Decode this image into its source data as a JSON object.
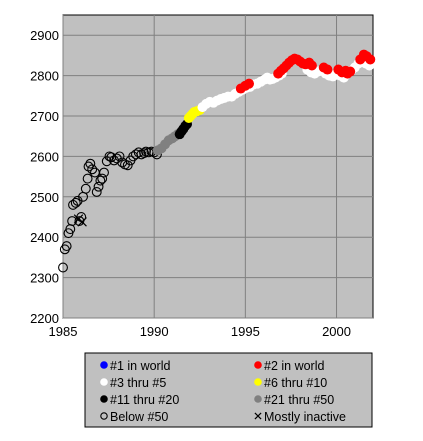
{
  "chart_data": {
    "type": "scatter",
    "xlim": [
      1985,
      2002
    ],
    "ylim": [
      2200,
      2950
    ],
    "x_ticks": [
      1985,
      1990,
      1995,
      2000
    ],
    "y_ticks": [
      2200,
      2300,
      2400,
      2500,
      2600,
      2700,
      2800,
      2900
    ],
    "grid": true,
    "plot_background": "#c0c0c0",
    "legend_position": "bottom",
    "categories": [
      {
        "key": "rank1",
        "label": "#1 in world",
        "color": "#0000ff",
        "marker": "filled"
      },
      {
        "key": "rank2",
        "label": "#2 in world",
        "color": "#ff0000",
        "marker": "filled"
      },
      {
        "key": "rank3to5",
        "label": "#3 thru #5",
        "color": "#ffffff",
        "marker": "filled"
      },
      {
        "key": "rank6to10",
        "label": "#6 thru #10",
        "color": "#ffff00",
        "marker": "filled"
      },
      {
        "key": "rank11to20",
        "label": "#11 thru #20",
        "color": "#000000",
        "marker": "filled"
      },
      {
        "key": "rank21to50",
        "label": "#21 thru #50",
        "color": "#808080",
        "marker": "filled"
      },
      {
        "key": "below50",
        "label": "Below #50",
        "color": "#000000",
        "marker": "open"
      },
      {
        "key": "inactive",
        "label": "Mostly inactive",
        "color": "#000000",
        "marker": "cross"
      }
    ],
    "series": [
      {
        "category": "below50",
        "points": [
          [
            1985.0,
            2325
          ],
          [
            1985.1,
            2370
          ],
          [
            1985.2,
            2378
          ],
          [
            1985.3,
            2410
          ],
          [
            1985.4,
            2420
          ],
          [
            1985.5,
            2440
          ],
          [
            1985.55,
            2480
          ],
          [
            1985.7,
            2485
          ],
          [
            1985.8,
            2490
          ],
          [
            1985.9,
            2440
          ],
          [
            1986.0,
            2450
          ],
          [
            1986.1,
            2500
          ],
          [
            1986.25,
            2520
          ],
          [
            1986.35,
            2545
          ],
          [
            1986.4,
            2575
          ],
          [
            1986.5,
            2582
          ],
          [
            1986.6,
            2568
          ],
          [
            1986.75,
            2560
          ],
          [
            1986.85,
            2512
          ],
          [
            1986.95,
            2525
          ],
          [
            1987.05,
            2540
          ],
          [
            1987.15,
            2545
          ],
          [
            1987.25,
            2560
          ],
          [
            1987.4,
            2588
          ],
          [
            1987.55,
            2600
          ],
          [
            1987.65,
            2598
          ],
          [
            1987.8,
            2590
          ],
          [
            1987.95,
            2595
          ],
          [
            1988.1,
            2600
          ],
          [
            1988.25,
            2585
          ],
          [
            1988.4,
            2580
          ],
          [
            1988.55,
            2578
          ],
          [
            1988.7,
            2590
          ],
          [
            1988.85,
            2600
          ],
          [
            1989.0,
            2605
          ],
          [
            1989.15,
            2610
          ],
          [
            1989.3,
            2605
          ],
          [
            1989.45,
            2608
          ],
          [
            1989.55,
            2612
          ],
          [
            1989.7,
            2610
          ],
          [
            1989.85,
            2612
          ],
          [
            1990.0,
            2610
          ],
          [
            1990.15,
            2605
          ]
        ]
      },
      {
        "category": "inactive",
        "points": [
          [
            1985.85,
            2445
          ],
          [
            1986.05,
            2438
          ]
        ]
      },
      {
        "category": "rank21to50",
        "points": [
          [
            1990.2,
            2615
          ],
          [
            1990.4,
            2620
          ],
          [
            1990.6,
            2630
          ],
          [
            1990.8,
            2640
          ],
          [
            1991.0,
            2645
          ],
          [
            1991.15,
            2650
          ],
          [
            1991.3,
            2655
          ]
        ]
      },
      {
        "category": "rank11to20",
        "points": [
          [
            1991.4,
            2655
          ],
          [
            1991.5,
            2662
          ],
          [
            1991.6,
            2668
          ],
          [
            1991.7,
            2675
          ],
          [
            1991.8,
            2680
          ]
        ]
      },
      {
        "category": "rank6to10",
        "points": [
          [
            1991.9,
            2695
          ],
          [
            1992.0,
            2700
          ],
          [
            1992.1,
            2705
          ],
          [
            1992.2,
            2710
          ],
          [
            1992.35,
            2712
          ],
          [
            1992.5,
            2715
          ]
        ]
      },
      {
        "category": "rank3to5",
        "points": [
          [
            1992.65,
            2722
          ],
          [
            1992.85,
            2730
          ],
          [
            1993.05,
            2735
          ],
          [
            1993.25,
            2733
          ],
          [
            1993.45,
            2738
          ],
          [
            1993.65,
            2742
          ],
          [
            1993.85,
            2745
          ],
          [
            1994.05,
            2748
          ],
          [
            1994.25,
            2748
          ],
          [
            1994.45,
            2755
          ],
          [
            1994.65,
            2760
          ],
          [
            1994.85,
            2765
          ],
          [
            1995.05,
            2770
          ],
          [
            1995.25,
            2772
          ],
          [
            1995.45,
            2778
          ],
          [
            1995.65,
            2780
          ],
          [
            1995.85,
            2785
          ],
          [
            1996.05,
            2790
          ],
          [
            1996.2,
            2795
          ],
          [
            1996.35,
            2790
          ],
          [
            1996.5,
            2792
          ],
          [
            1996.65,
            2795
          ],
          [
            1996.85,
            2800
          ],
          [
            1997.0,
            2805
          ],
          [
            1998.4,
            2815
          ],
          [
            1998.6,
            2808
          ],
          [
            1998.8,
            2805
          ],
          [
            1999.0,
            2810
          ],
          [
            1999.2,
            2812
          ],
          [
            1999.4,
            2805
          ],
          [
            1999.6,
            2800
          ],
          [
            1999.8,
            2798
          ],
          [
            2000.0,
            2805
          ],
          [
            2000.2,
            2800
          ],
          [
            2000.4,
            2795
          ],
          [
            2000.8,
            2812
          ],
          [
            2001.0,
            2820
          ],
          [
            2001.2,
            2830
          ],
          [
            2001.4,
            2835
          ],
          [
            2001.6,
            2830
          ],
          [
            2001.8,
            2825
          ]
        ]
      },
      {
        "category": "rank2",
        "points": [
          [
            1994.75,
            2768
          ],
          [
            1995.0,
            2775
          ],
          [
            1995.2,
            2780
          ],
          [
            1996.8,
            2805
          ],
          [
            1996.95,
            2812
          ],
          [
            1997.1,
            2818
          ],
          [
            1997.25,
            2825
          ],
          [
            1997.4,
            2832
          ],
          [
            1997.55,
            2838
          ],
          [
            1997.7,
            2842
          ],
          [
            1997.85,
            2840
          ],
          [
            1998.0,
            2835
          ],
          [
            1998.15,
            2830
          ],
          [
            1998.3,
            2828
          ],
          [
            1998.5,
            2832
          ],
          [
            1998.65,
            2825
          ],
          [
            1999.3,
            2820
          ],
          [
            1999.5,
            2815
          ],
          [
            2000.1,
            2815
          ],
          [
            2000.3,
            2808
          ],
          [
            2000.5,
            2812
          ],
          [
            2000.6,
            2805
          ],
          [
            2000.75,
            2810
          ],
          [
            2001.3,
            2840
          ],
          [
            2001.5,
            2852
          ],
          [
            2001.65,
            2848
          ],
          [
            2001.85,
            2840
          ]
        ]
      }
    ]
  }
}
